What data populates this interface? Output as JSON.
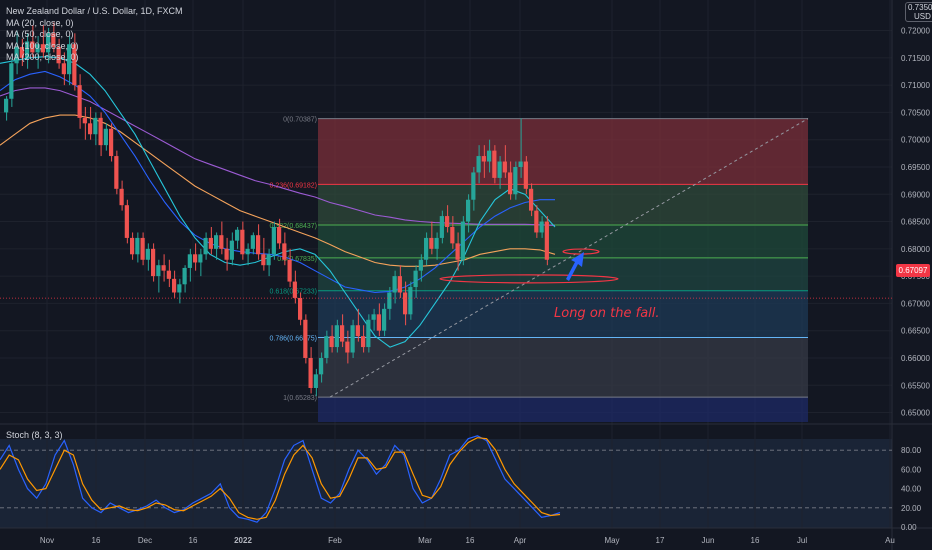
{
  "legend": {
    "symbol": "New Zealand Dollar / U.S. Dollar, 1D, FXCM",
    "ma20": "MA (20, close, 0)",
    "ma50": "MA (50, close, 0)",
    "ma100": "MA (100, close, 0)",
    "ma200": "MA (200, close, 0)"
  },
  "currency_badge": {
    "line1": "0.73500",
    "line2": "USD"
  },
  "current_price": "0.67097",
  "annotation": "Long on the fall.",
  "stoch_label": "Stoch (8, 3, 3)",
  "colors": {
    "background": "#131722",
    "up": "#26a69a",
    "down": "#ef5350",
    "ma20": "#26c6da",
    "ma50": "#2962ff",
    "ma100": "#f5a35b",
    "ma200": "#9c5bd4",
    "stoch_k": "#2962ff",
    "stoch_d": "#ff9800"
  },
  "chart_data": [
    {
      "type": "candlestick",
      "title": "New Zealand Dollar / U.S. Dollar, 1D, FXCM",
      "x_ticks": [
        "Nov",
        "16",
        "Dec",
        "16",
        "2022",
        "Feb",
        "Mar",
        "16",
        "Apr",
        "May",
        "17",
        "Jun",
        "16",
        "Jul",
        "Au"
      ],
      "y_ticks": [
        "0.72000",
        "0.71500",
        "0.71000",
        "0.70500",
        "0.70000",
        "0.69500",
        "0.69000",
        "0.68500",
        "0.68000",
        "0.67500",
        "0.67000",
        "0.66500",
        "0.66000",
        "0.65500",
        "0.65000"
      ],
      "ylim": [
        0.649,
        0.7245
      ],
      "y_tick_values": [
        0.72,
        0.715,
        0.71,
        0.705,
        0.7,
        0.695,
        0.69,
        0.685,
        0.68,
        0.675,
        0.67,
        0.665,
        0.66,
        0.655,
        0.65
      ],
      "current_price": 0.67097,
      "fibonacci": [
        {
          "ratio": 0,
          "label": "0(0.70387)",
          "price": 0.70387,
          "color": "#787b86",
          "zone_fill": "#7b2f3a"
        },
        {
          "ratio": 0.236,
          "label": "0.236(0.69182)",
          "price": 0.69182,
          "color": "#f23645",
          "zone_fill": "#2f4a3a"
        },
        {
          "ratio": 0.382,
          "label": "0.382(0.68437)",
          "price": 0.68437,
          "color": "#4caf50",
          "zone_fill": "#1f4a3a"
        },
        {
          "ratio": 0.5,
          "label": "0.5(0.67835)",
          "price": 0.67835,
          "color": "#4caf50",
          "zone_fill": "#1f4540"
        },
        {
          "ratio": 0.618,
          "label": "0.618(0.67233)",
          "price": 0.67233,
          "color": "#089981",
          "zone_fill": "#1e3a55"
        },
        {
          "ratio": 0.786,
          "label": "0.786(0.66375)",
          "price": 0.66375,
          "color": "#64b5f6",
          "zone_fill": "#363a45"
        },
        {
          "ratio": 1,
          "label": "1(0.65283)",
          "price": 0.65283,
          "color": "#787b86",
          "zone_fill": "#1e2a66"
        }
      ],
      "candles": [
        [
          0.705,
          0.708,
          0.7035,
          0.7075
        ],
        [
          0.7075,
          0.715,
          0.706,
          0.714
        ],
        [
          0.714,
          0.72,
          0.712,
          0.717
        ],
        [
          0.717,
          0.7185,
          0.7135,
          0.715
        ],
        [
          0.715,
          0.7195,
          0.713,
          0.718
        ],
        [
          0.718,
          0.721,
          0.715,
          0.716
        ],
        [
          0.716,
          0.719,
          0.713,
          0.7175
        ],
        [
          0.7175,
          0.721,
          0.715,
          0.716
        ],
        [
          0.716,
          0.7205,
          0.714,
          0.7195
        ],
        [
          0.7195,
          0.7215,
          0.716,
          0.717
        ],
        [
          0.717,
          0.7185,
          0.713,
          0.714
        ],
        [
          0.714,
          0.716,
          0.71,
          0.712
        ],
        [
          0.712,
          0.719,
          0.71,
          0.7175
        ],
        [
          0.7175,
          0.7195,
          0.709,
          0.71
        ],
        [
          0.71,
          0.712,
          0.702,
          0.704
        ],
        [
          0.704,
          0.706,
          0.7,
          0.703
        ],
        [
          0.703,
          0.706,
          0.7,
          0.701
        ],
        [
          0.701,
          0.705,
          0.699,
          0.704
        ],
        [
          0.704,
          0.705,
          0.697,
          0.699
        ],
        [
          0.699,
          0.703,
          0.698,
          0.702
        ],
        [
          0.702,
          0.703,
          0.696,
          0.697
        ],
        [
          0.697,
          0.698,
          0.69,
          0.691
        ],
        [
          0.691,
          0.6925,
          0.687,
          0.688
        ],
        [
          0.688,
          0.689,
          0.681,
          0.682
        ],
        [
          0.682,
          0.683,
          0.678,
          0.679
        ],
        [
          0.679,
          0.683,
          0.6775,
          0.682
        ],
        [
          0.682,
          0.683,
          0.677,
          0.678
        ],
        [
          0.678,
          0.681,
          0.676,
          0.68
        ],
        [
          0.68,
          0.681,
          0.674,
          0.675
        ],
        [
          0.675,
          0.678,
          0.672,
          0.677
        ],
        [
          0.677,
          0.679,
          0.674,
          0.676
        ],
        [
          0.676,
          0.678,
          0.673,
          0.6745
        ],
        [
          0.6745,
          0.676,
          0.671,
          0.672
        ],
        [
          0.672,
          0.6745,
          0.67,
          0.6735
        ],
        [
          0.6735,
          0.677,
          0.672,
          0.6765
        ],
        [
          0.6765,
          0.68,
          0.674,
          0.679
        ],
        [
          0.679,
          0.681,
          0.676,
          0.6775
        ],
        [
          0.6775,
          0.68,
          0.675,
          0.679
        ],
        [
          0.679,
          0.683,
          0.678,
          0.682
        ],
        [
          0.682,
          0.684,
          0.679,
          0.68
        ],
        [
          0.68,
          0.683,
          0.678,
          0.6825
        ],
        [
          0.6825,
          0.685,
          0.679,
          0.68
        ],
        [
          0.68,
          0.682,
          0.676,
          0.678
        ],
        [
          0.678,
          0.683,
          0.677,
          0.6815
        ],
        [
          0.6815,
          0.684,
          0.68,
          0.6835
        ],
        [
          0.6835,
          0.685,
          0.678,
          0.679
        ],
        [
          0.679,
          0.681,
          0.677,
          0.68
        ],
        [
          0.68,
          0.683,
          0.679,
          0.6825
        ],
        [
          0.6825,
          0.6845,
          0.678,
          0.679
        ],
        [
          0.679,
          0.682,
          0.676,
          0.677
        ],
        [
          0.677,
          0.68,
          0.675,
          0.679
        ],
        [
          0.679,
          0.685,
          0.678,
          0.684
        ],
        [
          0.684,
          0.6855,
          0.68,
          0.681
        ],
        [
          0.681,
          0.683,
          0.677,
          0.678
        ],
        [
          0.678,
          0.68,
          0.673,
          0.674
        ],
        [
          0.674,
          0.676,
          0.67,
          0.671
        ],
        [
          0.671,
          0.672,
          0.666,
          0.667
        ],
        [
          0.667,
          0.668,
          0.659,
          0.66
        ],
        [
          0.66,
          0.662,
          0.6535,
          0.6545
        ],
        [
          0.6545,
          0.658,
          0.653,
          0.657
        ],
        [
          0.657,
          0.661,
          0.6555,
          0.66
        ],
        [
          0.66,
          0.665,
          0.659,
          0.664
        ],
        [
          0.664,
          0.666,
          0.661,
          0.662
        ],
        [
          0.662,
          0.667,
          0.661,
          0.666
        ],
        [
          0.666,
          0.668,
          0.662,
          0.663
        ],
        [
          0.663,
          0.665,
          0.659,
          0.661
        ],
        [
          0.661,
          0.667,
          0.66,
          0.666
        ],
        [
          0.666,
          0.669,
          0.663,
          0.664
        ],
        [
          0.664,
          0.666,
          0.661,
          0.662
        ],
        [
          0.662,
          0.668,
          0.661,
          0.667
        ],
        [
          0.667,
          0.669,
          0.665,
          0.668
        ],
        [
          0.668,
          0.67,
          0.664,
          0.665
        ],
        [
          0.665,
          0.67,
          0.664,
          0.669
        ],
        [
          0.669,
          0.673,
          0.667,
          0.672
        ],
        [
          0.672,
          0.676,
          0.67,
          0.675
        ],
        [
          0.675,
          0.677,
          0.671,
          0.672
        ],
        [
          0.672,
          0.674,
          0.666,
          0.668
        ],
        [
          0.668,
          0.674,
          0.667,
          0.673
        ],
        [
          0.673,
          0.677,
          0.671,
          0.676
        ],
        [
          0.676,
          0.679,
          0.674,
          0.678
        ],
        [
          0.678,
          0.683,
          0.677,
          0.682
        ],
        [
          0.682,
          0.685,
          0.679,
          0.68
        ],
        [
          0.68,
          0.683,
          0.678,
          0.682
        ],
        [
          0.682,
          0.687,
          0.681,
          0.686
        ],
        [
          0.686,
          0.688,
          0.683,
          0.684
        ],
        [
          0.684,
          0.686,
          0.68,
          0.681
        ],
        [
          0.681,
          0.683,
          0.676,
          0.678
        ],
        [
          0.678,
          0.686,
          0.677,
          0.685
        ],
        [
          0.685,
          0.69,
          0.683,
          0.689
        ],
        [
          0.689,
          0.695,
          0.687,
          0.694
        ],
        [
          0.694,
          0.699,
          0.692,
          0.697
        ],
        [
          0.697,
          0.699,
          0.693,
          0.696
        ],
        [
          0.696,
          0.7,
          0.694,
          0.698
        ],
        [
          0.698,
          0.699,
          0.692,
          0.693
        ],
        [
          0.693,
          0.697,
          0.691,
          0.696
        ],
        [
          0.696,
          0.699,
          0.693,
          0.694
        ],
        [
          0.694,
          0.696,
          0.689,
          0.69
        ],
        [
          0.69,
          0.696,
          0.689,
          0.695
        ],
        [
          0.695,
          0.7039,
          0.693,
          0.696
        ],
        [
          0.696,
          0.697,
          0.69,
          0.691
        ],
        [
          0.691,
          0.692,
          0.686,
          0.687
        ],
        [
          0.687,
          0.688,
          0.682,
          0.683
        ],
        [
          0.683,
          0.686,
          0.682,
          0.685
        ],
        [
          0.685,
          0.686,
          0.677,
          0.678
        ]
      ],
      "ma20": [
        0.714,
        0.7145,
        0.715,
        0.7152,
        0.715,
        0.714,
        0.712,
        0.709,
        0.705,
        0.701,
        0.696,
        0.691,
        0.686,
        0.682,
        0.679,
        0.6775,
        0.677,
        0.6775,
        0.6785,
        0.6795,
        0.68,
        0.679,
        0.676,
        0.672,
        0.668,
        0.664,
        0.662,
        0.663,
        0.666,
        0.67,
        0.674,
        0.679,
        0.685,
        0.689,
        0.691,
        0.69,
        0.687,
        0.684
      ],
      "ma50": [
        0.709,
        0.711,
        0.712,
        0.7125,
        0.7115,
        0.71,
        0.708,
        0.705,
        0.701,
        0.697,
        0.6925,
        0.6885,
        0.685,
        0.6825,
        0.681,
        0.68,
        0.6795,
        0.6792,
        0.679,
        0.6785,
        0.6775,
        0.676,
        0.6745,
        0.673,
        0.6725,
        0.672,
        0.6722,
        0.673,
        0.6745,
        0.6765,
        0.679,
        0.6815,
        0.684,
        0.686,
        0.6875,
        0.6885,
        0.689,
        0.689
      ],
      "ma100": [
        0.699,
        0.701,
        0.703,
        0.704,
        0.7045,
        0.7045,
        0.704,
        0.703,
        0.7015,
        0.6995,
        0.6975,
        0.6955,
        0.6935,
        0.6915,
        0.69,
        0.6885,
        0.687,
        0.686,
        0.685,
        0.684,
        0.683,
        0.682,
        0.6808,
        0.6795,
        0.6785,
        0.6775,
        0.677,
        0.6768,
        0.6768,
        0.677,
        0.6775,
        0.678,
        0.679,
        0.6795,
        0.68,
        0.68,
        0.6798,
        0.679
      ],
      "ma200": [
        0.708,
        0.709,
        0.7095,
        0.7095,
        0.709,
        0.708,
        0.707,
        0.7055,
        0.704,
        0.7025,
        0.701,
        0.6995,
        0.698,
        0.6965,
        0.6955,
        0.6945,
        0.6935,
        0.6925,
        0.6918,
        0.691,
        0.6902,
        0.6895,
        0.6885,
        0.6878,
        0.687,
        0.6862,
        0.6858,
        0.6853,
        0.685,
        0.6848,
        0.6847,
        0.6846,
        0.6845,
        0.6845,
        0.6845,
        0.6845,
        0.6844,
        0.6843
      ]
    },
    {
      "type": "line",
      "title": "Stoch (8, 3, 3)",
      "y_ticks": [
        "80.00",
        "60.00",
        "40.00",
        "20.00",
        "0.00"
      ],
      "y_tick_values": [
        80,
        60,
        40,
        20,
        0
      ],
      "ylim": [
        0,
        100
      ],
      "series": [
        {
          "values": [
            70,
            85,
            60,
            40,
            30,
            45,
            75,
            90,
            65,
            30,
            20,
            15,
            25,
            20,
            15,
            18,
            22,
            28,
            20,
            15,
            18,
            25,
            30,
            35,
            45,
            20,
            10,
            8,
            5,
            15,
            40,
            70,
            85,
            90,
            60,
            30,
            25,
            35,
            60,
            80,
            70,
            55,
            65,
            85,
            75,
            40,
            25,
            30,
            50,
            75,
            80,
            92,
            95,
            90,
            70,
            50,
            40,
            30,
            20,
            10,
            12,
            15
          ]
        },
        {
          "values": [
            60,
            75,
            70,
            50,
            38,
            40,
            60,
            80,
            75,
            45,
            28,
            18,
            20,
            22,
            18,
            17,
            20,
            25,
            23,
            18,
            17,
            22,
            27,
            32,
            40,
            30,
            15,
            10,
            8,
            10,
            28,
            55,
            75,
            85,
            72,
            45,
            30,
            32,
            50,
            72,
            72,
            60,
            62,
            78,
            78,
            55,
            33,
            30,
            42,
            65,
            78,
            88,
            93,
            92,
            80,
            60,
            45,
            35,
            25,
            15,
            12,
            13
          ]
        }
      ]
    }
  ]
}
